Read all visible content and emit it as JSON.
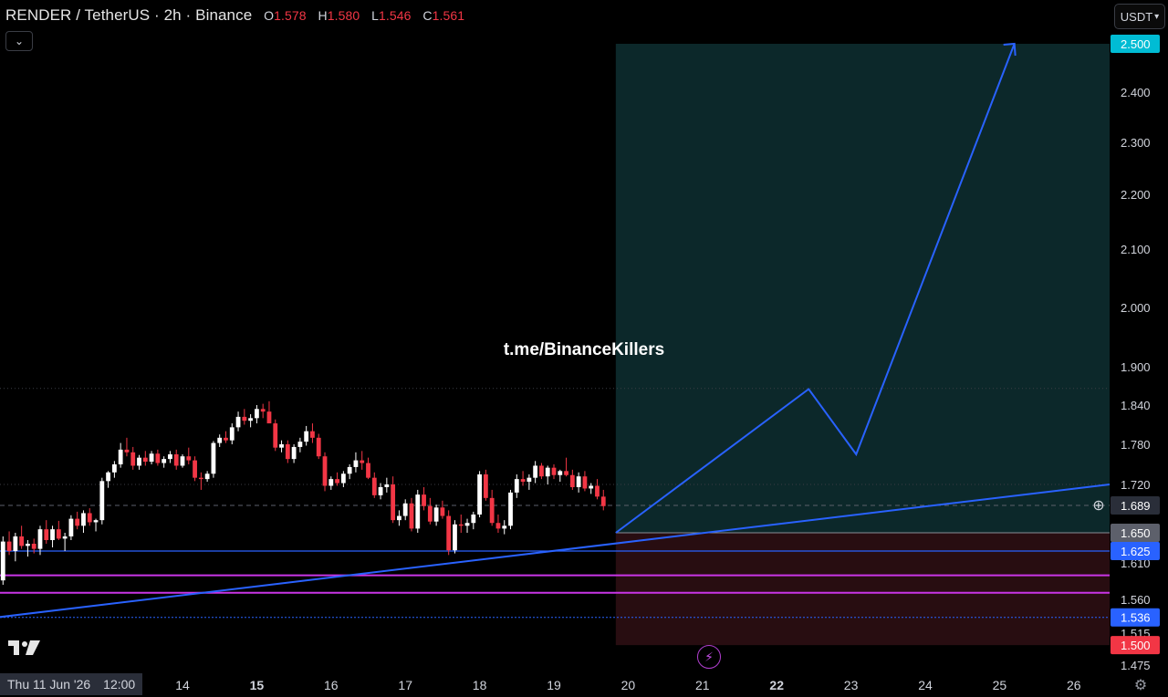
{
  "header": {
    "symbol": "RENDER / TetherUS · 2h · Binance",
    "open_label": "O",
    "open": "1.578",
    "high_label": "H",
    "high": "1.580",
    "low_label": "L",
    "low": "1.546",
    "close_label": "C",
    "close": "1.561"
  },
  "currency_button": "USDT",
  "watermark": "t.me/BinanceKillers",
  "crosshair_date": "Thu 11 Jun '26",
  "crosshair_time": "12:00",
  "icons": {
    "collapse": "chevron-down-icon",
    "currency": "chevron-down-icon",
    "logo": "tradingview-logo-icon",
    "alert": "lightning-icon",
    "add": "plus-circle-icon",
    "settings": "gear-icon"
  },
  "colors": {
    "up": "#ffffff",
    "down": "#f23645",
    "trendline": "#2962ff",
    "support": "#2962ff",
    "magenta": "#c935e6",
    "profit_zone": "#0d2a2c",
    "loss_zone": "#2a0e12",
    "target_badge": "#00bcd4"
  },
  "chart_data": {
    "type": "candlestick",
    "timeframe": "2h",
    "x_axis_labels": [
      "14",
      "15",
      "16",
      "17",
      "18",
      "19",
      "20",
      "21",
      "22",
      "23",
      "24",
      "25",
      "26"
    ],
    "y_axis_labels": [
      "2.400",
      "2.300",
      "2.200",
      "2.100",
      "2.000",
      "1.900",
      "1.840",
      "1.780",
      "1.720",
      "1.610",
      "1.560",
      "1.515",
      "1.475"
    ],
    "price_badges": [
      {
        "label": "2.500",
        "value": 2.5,
        "color": "#00bcd4"
      },
      {
        "label": "1.689",
        "value": 1.689,
        "color": "#2a2e39"
      },
      {
        "label": "1.650",
        "value": 1.65,
        "color": "#5d606b"
      },
      {
        "label": "1.625",
        "value": 1.625,
        "color": "#2962ff"
      },
      {
        "label": "1.536",
        "value": 1.536,
        "color": "#2962ff"
      },
      {
        "label": "1.500",
        "value": 1.5,
        "color": "#f23645"
      }
    ],
    "candles_ohlc": [
      [
        1.546,
        1.592,
        1.534,
        1.586
      ],
      [
        1.586,
        1.645,
        1.58,
        1.638
      ],
      [
        1.638,
        1.652,
        1.62,
        1.625
      ],
      [
        1.625,
        1.65,
        1.612,
        1.645
      ],
      [
        1.645,
        1.66,
        1.628,
        1.632
      ],
      [
        1.632,
        1.64,
        1.618,
        1.635
      ],
      [
        1.635,
        1.642,
        1.622,
        1.628
      ],
      [
        1.628,
        1.66,
        1.62,
        1.655
      ],
      [
        1.655,
        1.668,
        1.635,
        1.64
      ],
      [
        1.64,
        1.66,
        1.63,
        1.655
      ],
      [
        1.655,
        1.667,
        1.64,
        1.642
      ],
      [
        1.642,
        1.65,
        1.625,
        1.645
      ],
      [
        1.645,
        1.675,
        1.64,
        1.67
      ],
      [
        1.67,
        1.68,
        1.655,
        1.66
      ],
      [
        1.66,
        1.682,
        1.65,
        1.678
      ],
      [
        1.678,
        1.685,
        1.66,
        1.665
      ],
      [
        1.665,
        1.67,
        1.652,
        1.668
      ],
      [
        1.668,
        1.73,
        1.662,
        1.725
      ],
      [
        1.725,
        1.74,
        1.715,
        1.738
      ],
      [
        1.738,
        1.755,
        1.73,
        1.75
      ],
      [
        1.75,
        1.782,
        1.745,
        1.772
      ],
      [
        1.772,
        1.79,
        1.762,
        1.768
      ],
      [
        1.768,
        1.776,
        1.742,
        1.748
      ],
      [
        1.748,
        1.764,
        1.742,
        1.76
      ],
      [
        1.76,
        1.77,
        1.748,
        1.754
      ],
      [
        1.754,
        1.77,
        1.75,
        1.766
      ],
      [
        1.766,
        1.772,
        1.748,
        1.752
      ],
      [
        1.752,
        1.762,
        1.745,
        1.758
      ],
      [
        1.758,
        1.77,
        1.752,
        1.765
      ],
      [
        1.765,
        1.772,
        1.742,
        1.748
      ],
      [
        1.748,
        1.765,
        1.745,
        1.762
      ],
      [
        1.762,
        1.775,
        1.75,
        1.756
      ],
      [
        1.756,
        1.762,
        1.725,
        1.73
      ],
      [
        1.73,
        1.738,
        1.712,
        1.728
      ],
      [
        1.728,
        1.74,
        1.724,
        1.736
      ],
      [
        1.736,
        1.785,
        1.73,
        1.782
      ],
      [
        1.782,
        1.795,
        1.776,
        1.79
      ],
      [
        1.79,
        1.8,
        1.782,
        1.786
      ],
      [
        1.786,
        1.812,
        1.78,
        1.806
      ],
      [
        1.806,
        1.83,
        1.8,
        1.822
      ],
      [
        1.822,
        1.834,
        1.81,
        1.816
      ],
      [
        1.816,
        1.826,
        1.806,
        1.82
      ],
      [
        1.82,
        1.84,
        1.812,
        1.834
      ],
      [
        1.834,
        1.842,
        1.82,
        1.83
      ],
      [
        1.83,
        1.846,
        1.816,
        1.812
      ],
      [
        1.812,
        1.818,
        1.77,
        1.775
      ],
      [
        1.775,
        1.786,
        1.768,
        1.78
      ],
      [
        1.78,
        1.786,
        1.752,
        1.758
      ],
      [
        1.758,
        1.78,
        1.752,
        1.776
      ],
      [
        1.776,
        1.79,
        1.768,
        1.784
      ],
      [
        1.784,
        1.808,
        1.778,
        1.8
      ],
      [
        1.8,
        1.812,
        1.782,
        1.79
      ],
      [
        1.79,
        1.796,
        1.758,
        1.762
      ],
      [
        1.762,
        1.768,
        1.71,
        1.718
      ],
      [
        1.718,
        1.732,
        1.712,
        1.728
      ],
      [
        1.728,
        1.738,
        1.718,
        1.722
      ],
      [
        1.722,
        1.74,
        1.716,
        1.736
      ],
      [
        1.736,
        1.75,
        1.728,
        1.746
      ],
      [
        1.746,
        1.768,
        1.738,
        1.756
      ],
      [
        1.756,
        1.77,
        1.742,
        1.752
      ],
      [
        1.752,
        1.76,
        1.728,
        1.73
      ],
      [
        1.73,
        1.738,
        1.7,
        1.704
      ],
      [
        1.704,
        1.722,
        1.698,
        1.716
      ],
      [
        1.716,
        1.73,
        1.708,
        1.72
      ],
      [
        1.72,
        1.732,
        1.664,
        1.668
      ],
      [
        1.668,
        1.682,
        1.66,
        1.674
      ],
      [
        1.674,
        1.698,
        1.668,
        1.692
      ],
      [
        1.692,
        1.7,
        1.652,
        1.656
      ],
      [
        1.656,
        1.712,
        1.65,
        1.705
      ],
      [
        1.705,
        1.716,
        1.682,
        1.688
      ],
      [
        1.688,
        1.7,
        1.662,
        1.666
      ],
      [
        1.666,
        1.69,
        1.66,
        1.686
      ],
      [
        1.686,
        1.696,
        1.67,
        1.674
      ],
      [
        1.674,
        1.682,
        1.62,
        1.626
      ],
      [
        1.626,
        1.668,
        1.622,
        1.662
      ],
      [
        1.662,
        1.676,
        1.65,
        1.66
      ],
      [
        1.66,
        1.67,
        1.65,
        1.664
      ],
      [
        1.664,
        1.68,
        1.655,
        1.676
      ],
      [
        1.676,
        1.74,
        1.672,
        1.735
      ],
      [
        1.735,
        1.742,
        1.696,
        1.7
      ],
      [
        1.7,
        1.712,
        1.66,
        1.664
      ],
      [
        1.664,
        1.676,
        1.65,
        1.656
      ],
      [
        1.656,
        1.668,
        1.648,
        1.66
      ],
      [
        1.66,
        1.712,
        1.655,
        1.708
      ],
      [
        1.708,
        1.735,
        1.7,
        1.728
      ],
      [
        1.728,
        1.74,
        1.718,
        1.724
      ],
      [
        1.724,
        1.735,
        1.712,
        1.73
      ],
      [
        1.73,
        1.755,
        1.722,
        1.748
      ],
      [
        1.748,
        1.752,
        1.728,
        1.732
      ],
      [
        1.732,
        1.748,
        1.72,
        1.745
      ],
      [
        1.745,
        1.75,
        1.728,
        1.734
      ],
      [
        1.734,
        1.742,
        1.724,
        1.74
      ],
      [
        1.74,
        1.76,
        1.732,
        1.734
      ],
      [
        1.734,
        1.742,
        1.712,
        1.716
      ],
      [
        1.716,
        1.738,
        1.708,
        1.732
      ],
      [
        1.732,
        1.74,
        1.71,
        1.714
      ],
      [
        1.714,
        1.722,
        1.706,
        1.718
      ],
      [
        1.718,
        1.728,
        1.698,
        1.702
      ],
      [
        1.702,
        1.712,
        1.682,
        1.688
      ]
    ],
    "drawings": {
      "trendline_from": {
        "x": "11 Jun 12:00",
        "y": 1.536
      },
      "trendline_to": {
        "x": "26",
        "y": 1.72
      },
      "support_line": 1.625,
      "support_line_low": 1.536,
      "magenta_zone": [
        1.569,
        1.593
      ],
      "long_position": {
        "entry": 1.65,
        "target": 2.5,
        "stop": 1.5
      },
      "projection_path": [
        1.65,
        1.865,
        1.765,
        2.5
      ]
    }
  }
}
